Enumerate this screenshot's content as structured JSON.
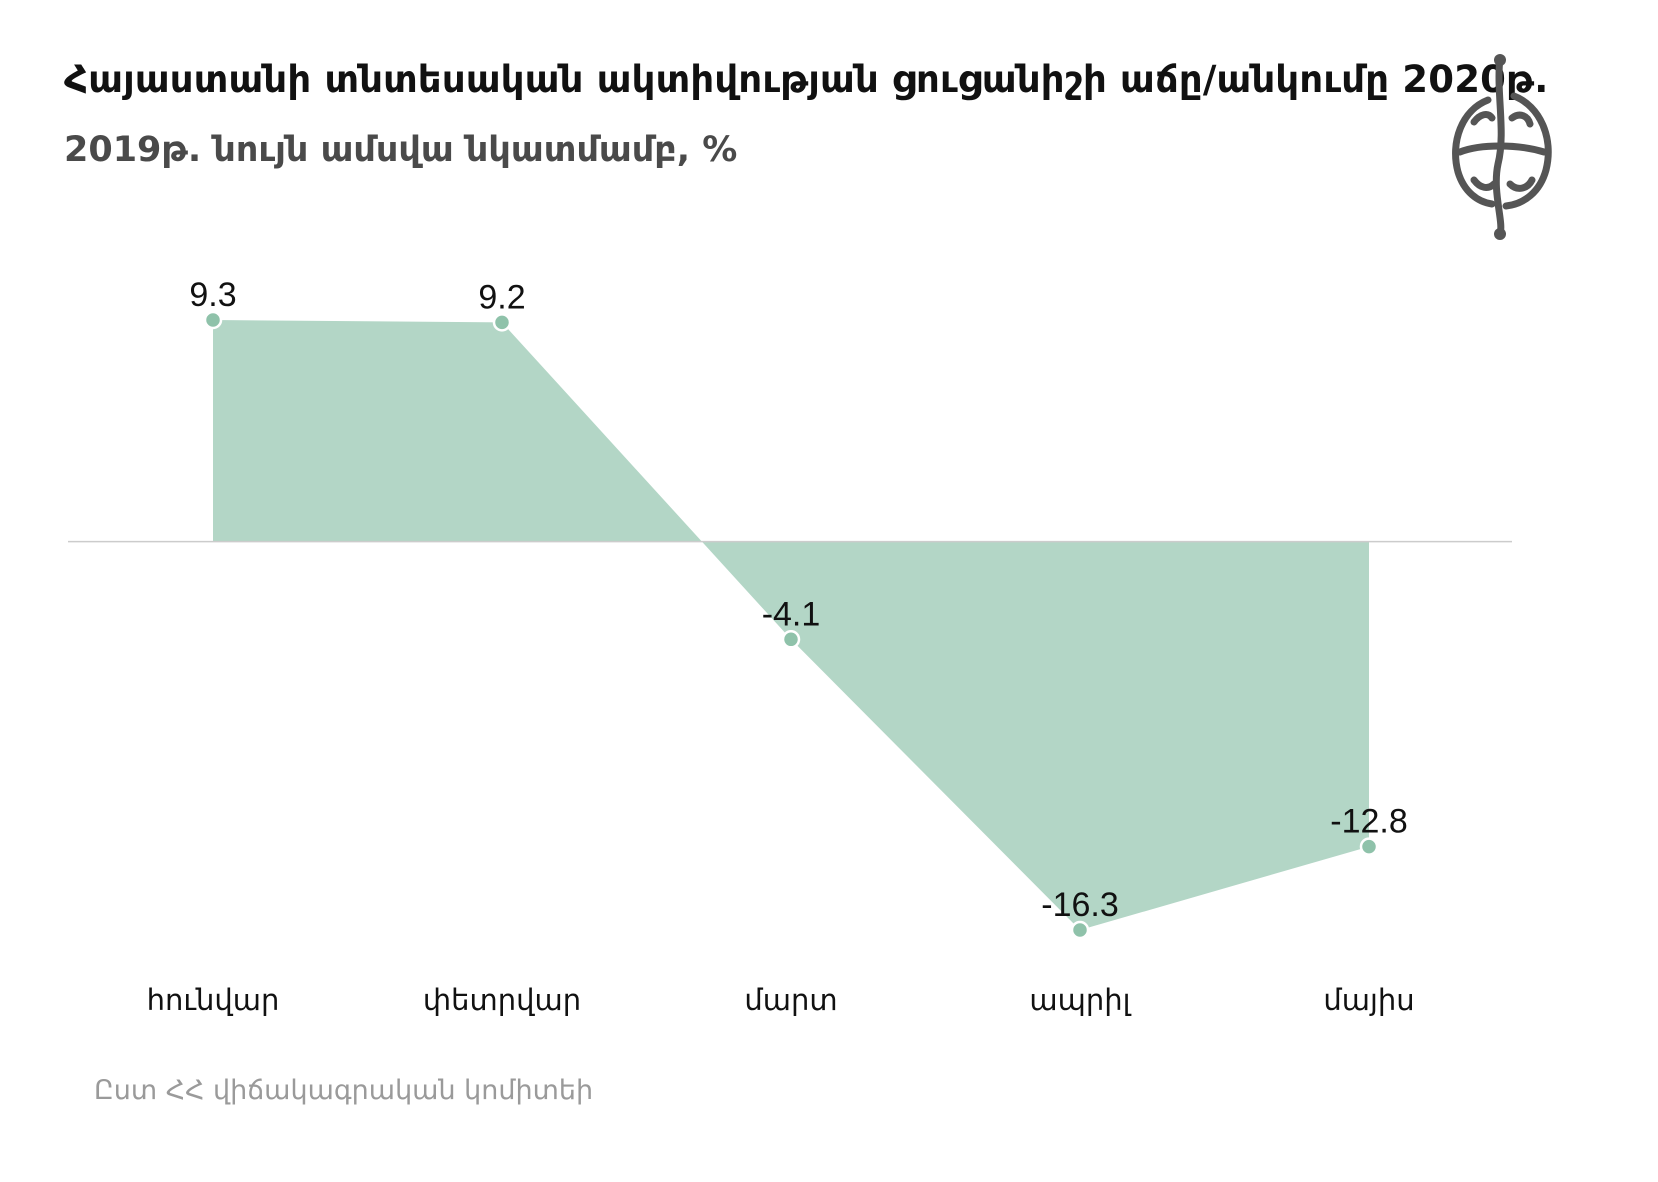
{
  "header": {
    "title_main": "Հայաստանի տնտեսական ակտիվության ցուցանիշի աճը/անկումը 2020թ.",
    "title_sub": "2019թ. նույն ամսվա նկատմամբ, %"
  },
  "source": "Ըստ ՀՀ վիճակագրական կոմիտեի",
  "colors": {
    "area_fill": "#b3d6c6",
    "marker": "#8fc2aa",
    "zero_line": "#cccccc",
    "label": "#111111"
  },
  "logo_icon": "globe-emblem-icon",
  "chart_data": {
    "type": "area",
    "categories": [
      "հունվար",
      "փետրվար",
      "մարտ",
      "ապրիլ",
      "մայիս"
    ],
    "series": [
      {
        "values": [
          9.3,
          9.2,
          -4.1,
          -16.3,
          -12.8
        ],
        "labels": [
          "9.3",
          "9.2",
          "-4.1",
          "-16.3",
          "-12.8"
        ]
      }
    ],
    "ylim": [
      -16.3,
      9.3
    ],
    "grid": false,
    "legend": "none"
  }
}
